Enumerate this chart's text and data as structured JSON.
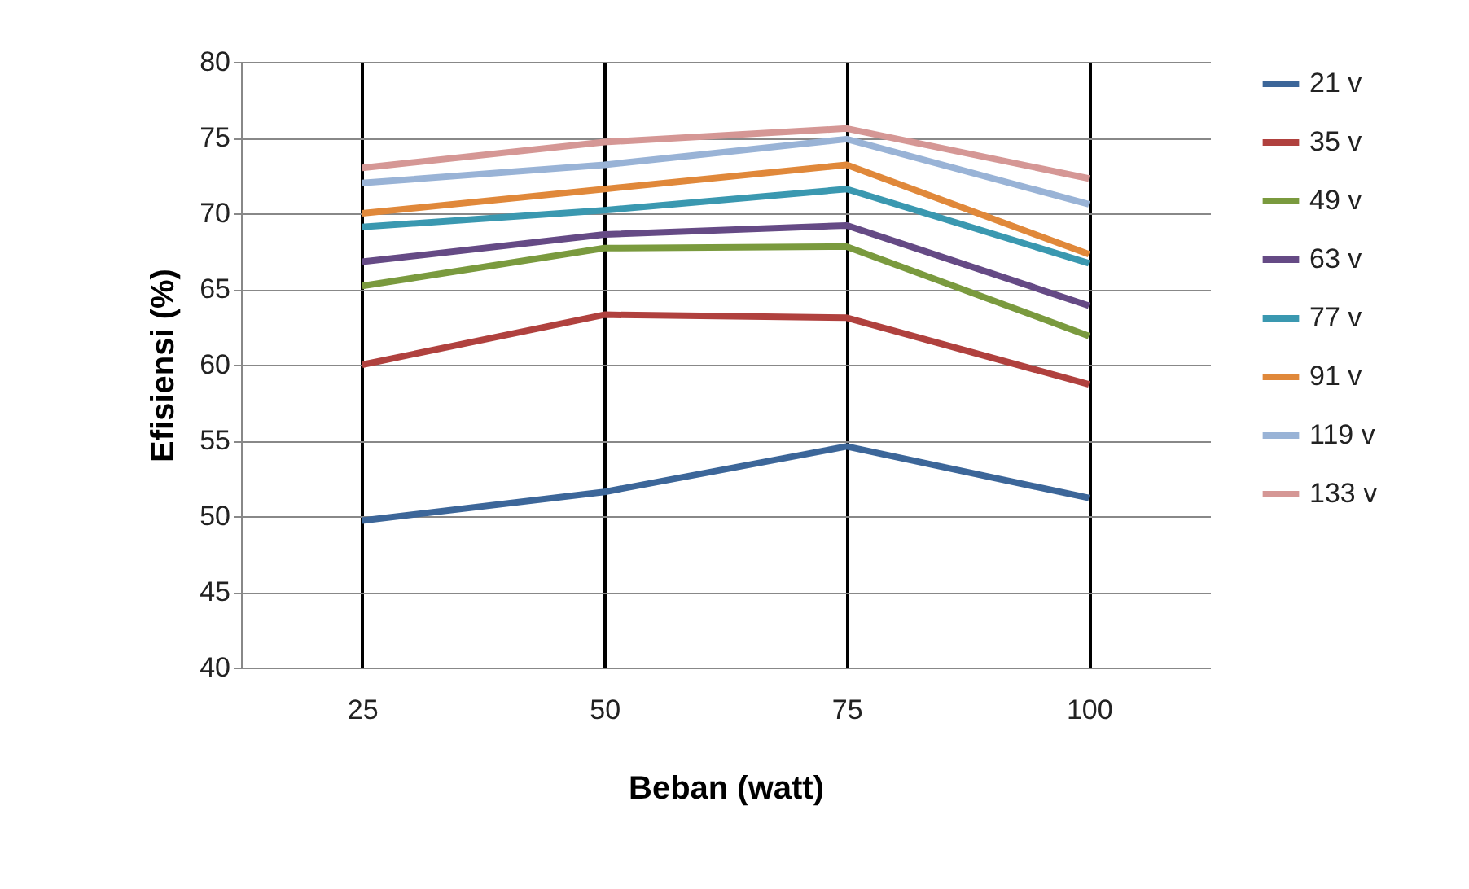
{
  "chart_data": {
    "type": "line",
    "xlabel": "Beban (watt)",
    "ylabel": "Efisiensi (%)",
    "categories": [
      "25",
      "50",
      "75",
      "100"
    ],
    "ylim": [
      40,
      80
    ],
    "yticks": [
      40,
      45,
      50,
      55,
      60,
      65,
      70,
      75,
      80
    ],
    "grid": true,
    "legend": "right",
    "marker": "none",
    "line_style": "solid",
    "series": [
      {
        "name": "21 v",
        "color": "#3c6699",
        "values": [
          49.7,
          51.6,
          54.6,
          51.2
        ]
      },
      {
        "name": "35 v",
        "color": "#b0413e",
        "values": [
          60.0,
          63.3,
          63.1,
          58.7
        ]
      },
      {
        "name": "49 v",
        "color": "#7a9a3e",
        "values": [
          65.2,
          67.7,
          67.8,
          61.9
        ]
      },
      {
        "name": "63 v",
        "color": "#654a85",
        "values": [
          66.8,
          68.6,
          69.2,
          63.9
        ]
      },
      {
        "name": "77 v",
        "color": "#3a98b0",
        "values": [
          69.1,
          70.2,
          71.6,
          66.7
        ]
      },
      {
        "name": "91 v",
        "color": "#e0883a",
        "values": [
          70.0,
          71.6,
          73.2,
          67.3
        ]
      },
      {
        "name": "119 v",
        "color": "#99b3d6",
        "values": [
          72.0,
          73.2,
          74.9,
          70.6
        ]
      },
      {
        "name": "133 v",
        "color": "#d59795",
        "values": [
          73.0,
          74.7,
          75.6,
          72.3
        ]
      }
    ]
  }
}
